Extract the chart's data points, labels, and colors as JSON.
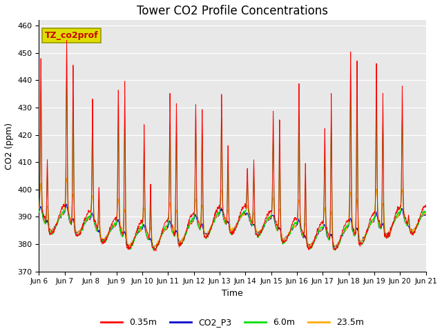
{
  "title": "Tower CO2 Profile Concentrations",
  "xlabel": "Time",
  "ylabel": "CO2 (ppm)",
  "ylim": [
    370,
    462
  ],
  "yticks": [
    370,
    380,
    390,
    400,
    410,
    420,
    430,
    440,
    450,
    460
  ],
  "series_labels": [
    "0.35m",
    "CO2_P3",
    "6.0m",
    "23.5m"
  ],
  "series_colors": [
    "#ff0000",
    "#0000cc",
    "#00dd00",
    "#ffaa00"
  ],
  "annotation_label": "TZ_co2prof",
  "annotation_bg": "#dddd00",
  "annotation_text_color": "#cc0000",
  "annotation_border": "#999900",
  "background_color": "#e8e8e8",
  "fig_bg": "#ffffff",
  "n_days": 15,
  "points_per_day": 96,
  "spike_times_frac": [
    0.08,
    0.33,
    0.08,
    0.33,
    0.08,
    0.33,
    0.08,
    0.33,
    0.08,
    0.33,
    0.08,
    0.33,
    0.08,
    0.33,
    0.08,
    0.33,
    0.08,
    0.33,
    0.08,
    0.33,
    0.08,
    0.33,
    0.08,
    0.33,
    0.08,
    0.33,
    0.08,
    0.33,
    0.08,
    0.33
  ],
  "red_spike_heights": [
    55,
    25,
    62,
    60,
    42,
    18,
    48,
    58,
    35,
    22,
    47,
    50,
    40,
    45,
    42,
    30,
    15,
    25,
    38,
    42,
    50,
    28,
    35,
    55,
    62,
    65,
    55,
    50,
    45,
    5
  ],
  "green_spike_heights": [
    45,
    20,
    50,
    48,
    35,
    14,
    38,
    46,
    28,
    17,
    38,
    40,
    33,
    36,
    35,
    24,
    12,
    20,
    30,
    34,
    40,
    22,
    28,
    44,
    50,
    52,
    44,
    40,
    36,
    4
  ],
  "orange_spike_heights": [
    12,
    8,
    14,
    13,
    10,
    5,
    11,
    12,
    9,
    6,
    10,
    11,
    9,
    10,
    10,
    7,
    4,
    6,
    9,
    10,
    11,
    7,
    9,
    12,
    14,
    15,
    12,
    11,
    10,
    2
  ],
  "title_fontsize": 12,
  "axis_label_fontsize": 9,
  "tick_fontsize": 8,
  "xtick_fontsize": 7.5,
  "legend_fontsize": 9
}
